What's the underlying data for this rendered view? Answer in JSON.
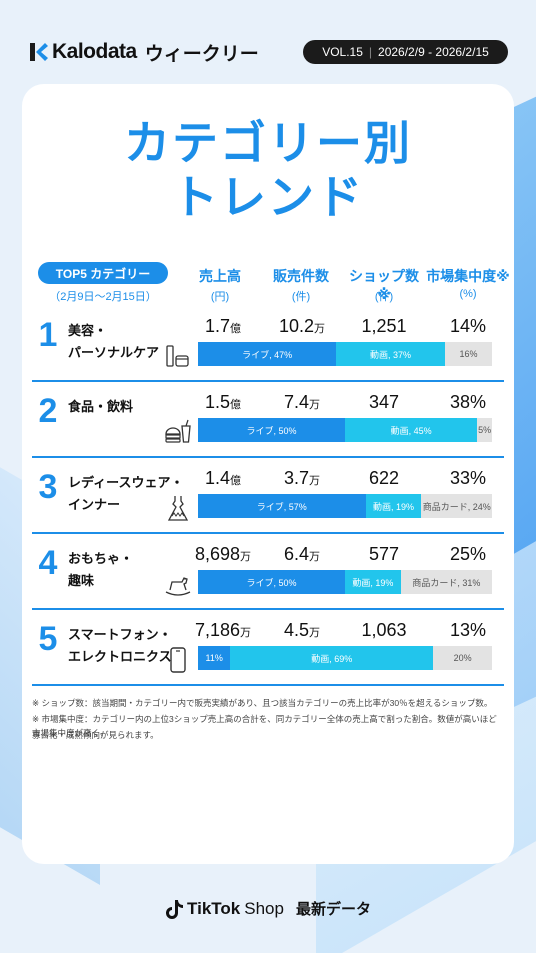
{
  "header": {
    "brand": "Kalodata",
    "weekly": "ウィークリー",
    "vol": "VOL.15",
    "period": "2026/2/9 - 2026/2/15"
  },
  "title": {
    "line1": "カテゴリー別",
    "line2": "トレンド"
  },
  "table": {
    "category_label": "TOP5 カテゴリー",
    "category_period": "（2月9日～2月15日）",
    "columns": [
      {
        "name": "売上高",
        "unit": "(円)"
      },
      {
        "name": "販売件数",
        "unit": "(件)"
      },
      {
        "name": "ショップ数※",
        "unit": "(件)"
      },
      {
        "name": "市場集中度※",
        "unit": "(%)"
      }
    ]
  },
  "chart_data": {
    "type": "table",
    "rows": [
      {
        "rank": "1",
        "name1": "美容・",
        "name2": "パーソナルケア",
        "icon": "cosmetics-icon",
        "sales": "1.7",
        "sales_unit": "億",
        "units": "10.2",
        "units_unit": "万",
        "shops": "1,251",
        "concentration": "14%",
        "segments": [
          {
            "type": "live",
            "label": "ライブ, 47%",
            "value": 47
          },
          {
            "type": "video",
            "label": "動画, 37%",
            "value": 37
          },
          {
            "type": "other",
            "label": "16%",
            "value": 16
          }
        ]
      },
      {
        "rank": "2",
        "name1": "食品・飲料",
        "name2": "",
        "icon": "food-icon",
        "sales": "1.5",
        "sales_unit": "億",
        "units": "7.4",
        "units_unit": "万",
        "shops": "347",
        "concentration": "38%",
        "segments": [
          {
            "type": "live",
            "label": "ライブ, 50%",
            "value": 50
          },
          {
            "type": "video",
            "label": "動画, 45%",
            "value": 45
          },
          {
            "type": "other",
            "label": "5%",
            "value": 5
          }
        ]
      },
      {
        "rank": "3",
        "name1": "レディースウェア・",
        "name2": "インナー",
        "icon": "dress-icon",
        "sales": "1.4",
        "sales_unit": "億",
        "units": "3.7",
        "units_unit": "万",
        "shops": "622",
        "concentration": "33%",
        "segments": [
          {
            "type": "live",
            "label": "ライブ, 57%",
            "value": 57
          },
          {
            "type": "video",
            "label": "動画, 19%",
            "value": 19
          },
          {
            "type": "other",
            "label": "商品カード, 24%",
            "value": 24
          }
        ]
      },
      {
        "rank": "4",
        "name1": "おもちゃ・",
        "name2": "趣味",
        "icon": "rocking-horse-icon",
        "sales": "8,698",
        "sales_unit": "万",
        "units": "6.4",
        "units_unit": "万",
        "shops": "577",
        "concentration": "25%",
        "segments": [
          {
            "type": "live",
            "label": "ライブ, 50%",
            "value": 50
          },
          {
            "type": "video",
            "label": "動画, 19%",
            "value": 19
          },
          {
            "type": "other",
            "label": "商品カード, 31%",
            "value": 31
          }
        ]
      },
      {
        "rank": "5",
        "name1": "スマートフォン・",
        "name2": "エレクトロニクス",
        "icon": "smartphone-icon",
        "sales": "7,186",
        "sales_unit": "万",
        "units": "4.5",
        "units_unit": "万",
        "shops": "1,063",
        "concentration": "13%",
        "segments": [
          {
            "type": "live",
            "label": "11%",
            "value": 11
          },
          {
            "type": "video",
            "label": "動画, 69%",
            "value": 69
          },
          {
            "type": "other",
            "label": "20%",
            "value": 20
          }
        ]
      }
    ]
  },
  "notes": {
    "n1": "※ ショップ数：該当期間・カテゴリー内で販売実績があり、且つ該当カテゴリーの売上比率が30％を超えるショップ数。",
    "n2": "※ 市場集中度：カテゴリー内の上位3ショップ売上高の合計を、同カテゴリー全体の売上高で割った割合。数値が高いほど市場集中度が高く、",
    "n3": "寡占化・成熟傾向が見られます。"
  },
  "footer": {
    "tiktok": "TikTok",
    "shop": "Shop",
    "sub": "最新データ"
  },
  "colors": {
    "accent": "#1c8ee8",
    "video": "#22c5ec",
    "other": "#e3e3e3"
  }
}
